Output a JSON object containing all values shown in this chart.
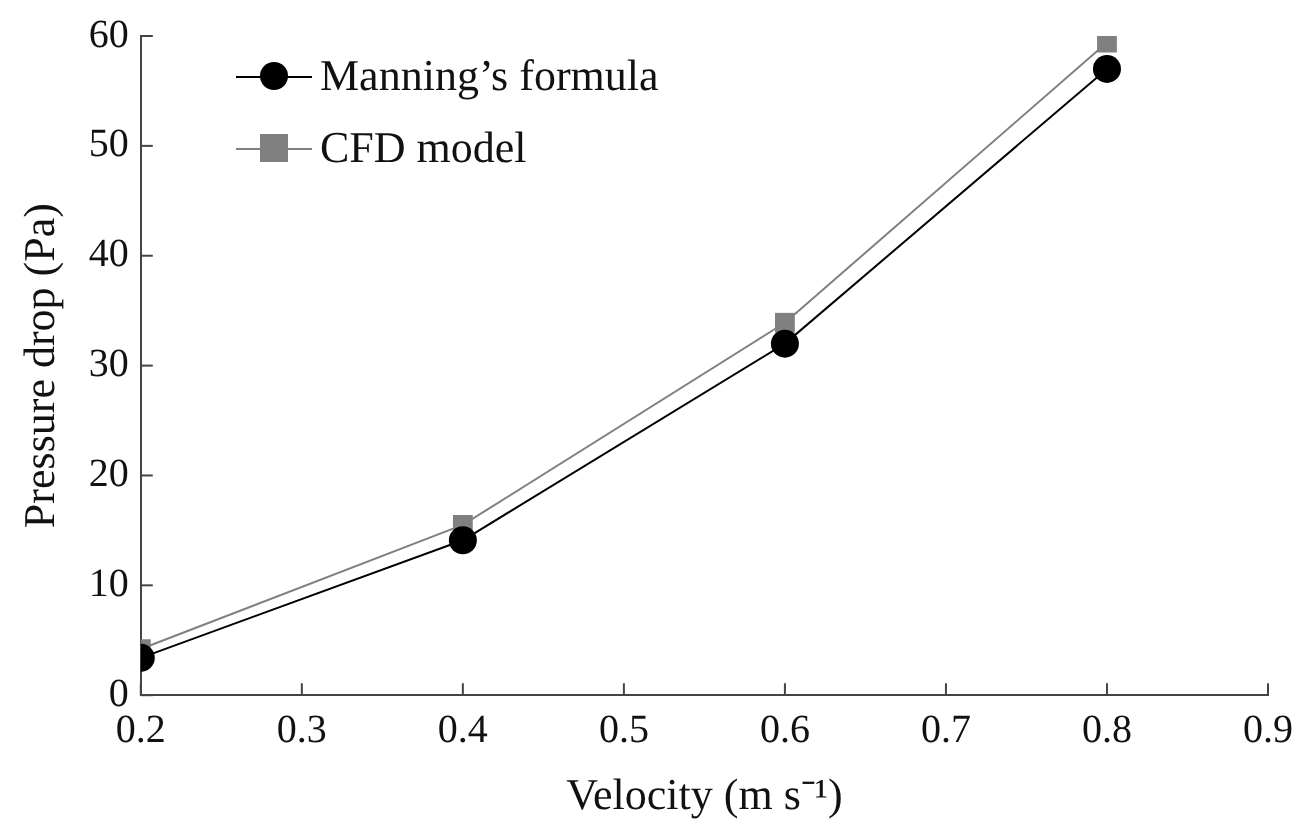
{
  "chart_data": {
    "type": "line",
    "xlabel": "Velocity (m s⁻¹)",
    "ylabel": "Pressure drop (Pa)",
    "x": [
      0.2,
      0.4,
      0.6,
      0.8
    ],
    "series": [
      {
        "name": "Manning’s formula",
        "color": "#000000",
        "marker": "circle",
        "values": [
          3.4,
          14.1,
          32.0,
          57.0
        ]
      },
      {
        "name": "CFD model",
        "color": "#808080",
        "marker": "square",
        "values": [
          4.2,
          15.5,
          33.9,
          59.4
        ]
      }
    ],
    "xlim": [
      0.2,
      0.9
    ],
    "xticks": [
      0.2,
      0.3,
      0.4,
      0.5,
      0.6,
      0.7,
      0.8,
      0.9
    ],
    "ylim": [
      0,
      60
    ],
    "yticks": [
      0,
      10,
      20,
      30,
      40,
      50,
      60
    ],
    "grid": false,
    "legend": "top left",
    "line_style": "solid"
  }
}
